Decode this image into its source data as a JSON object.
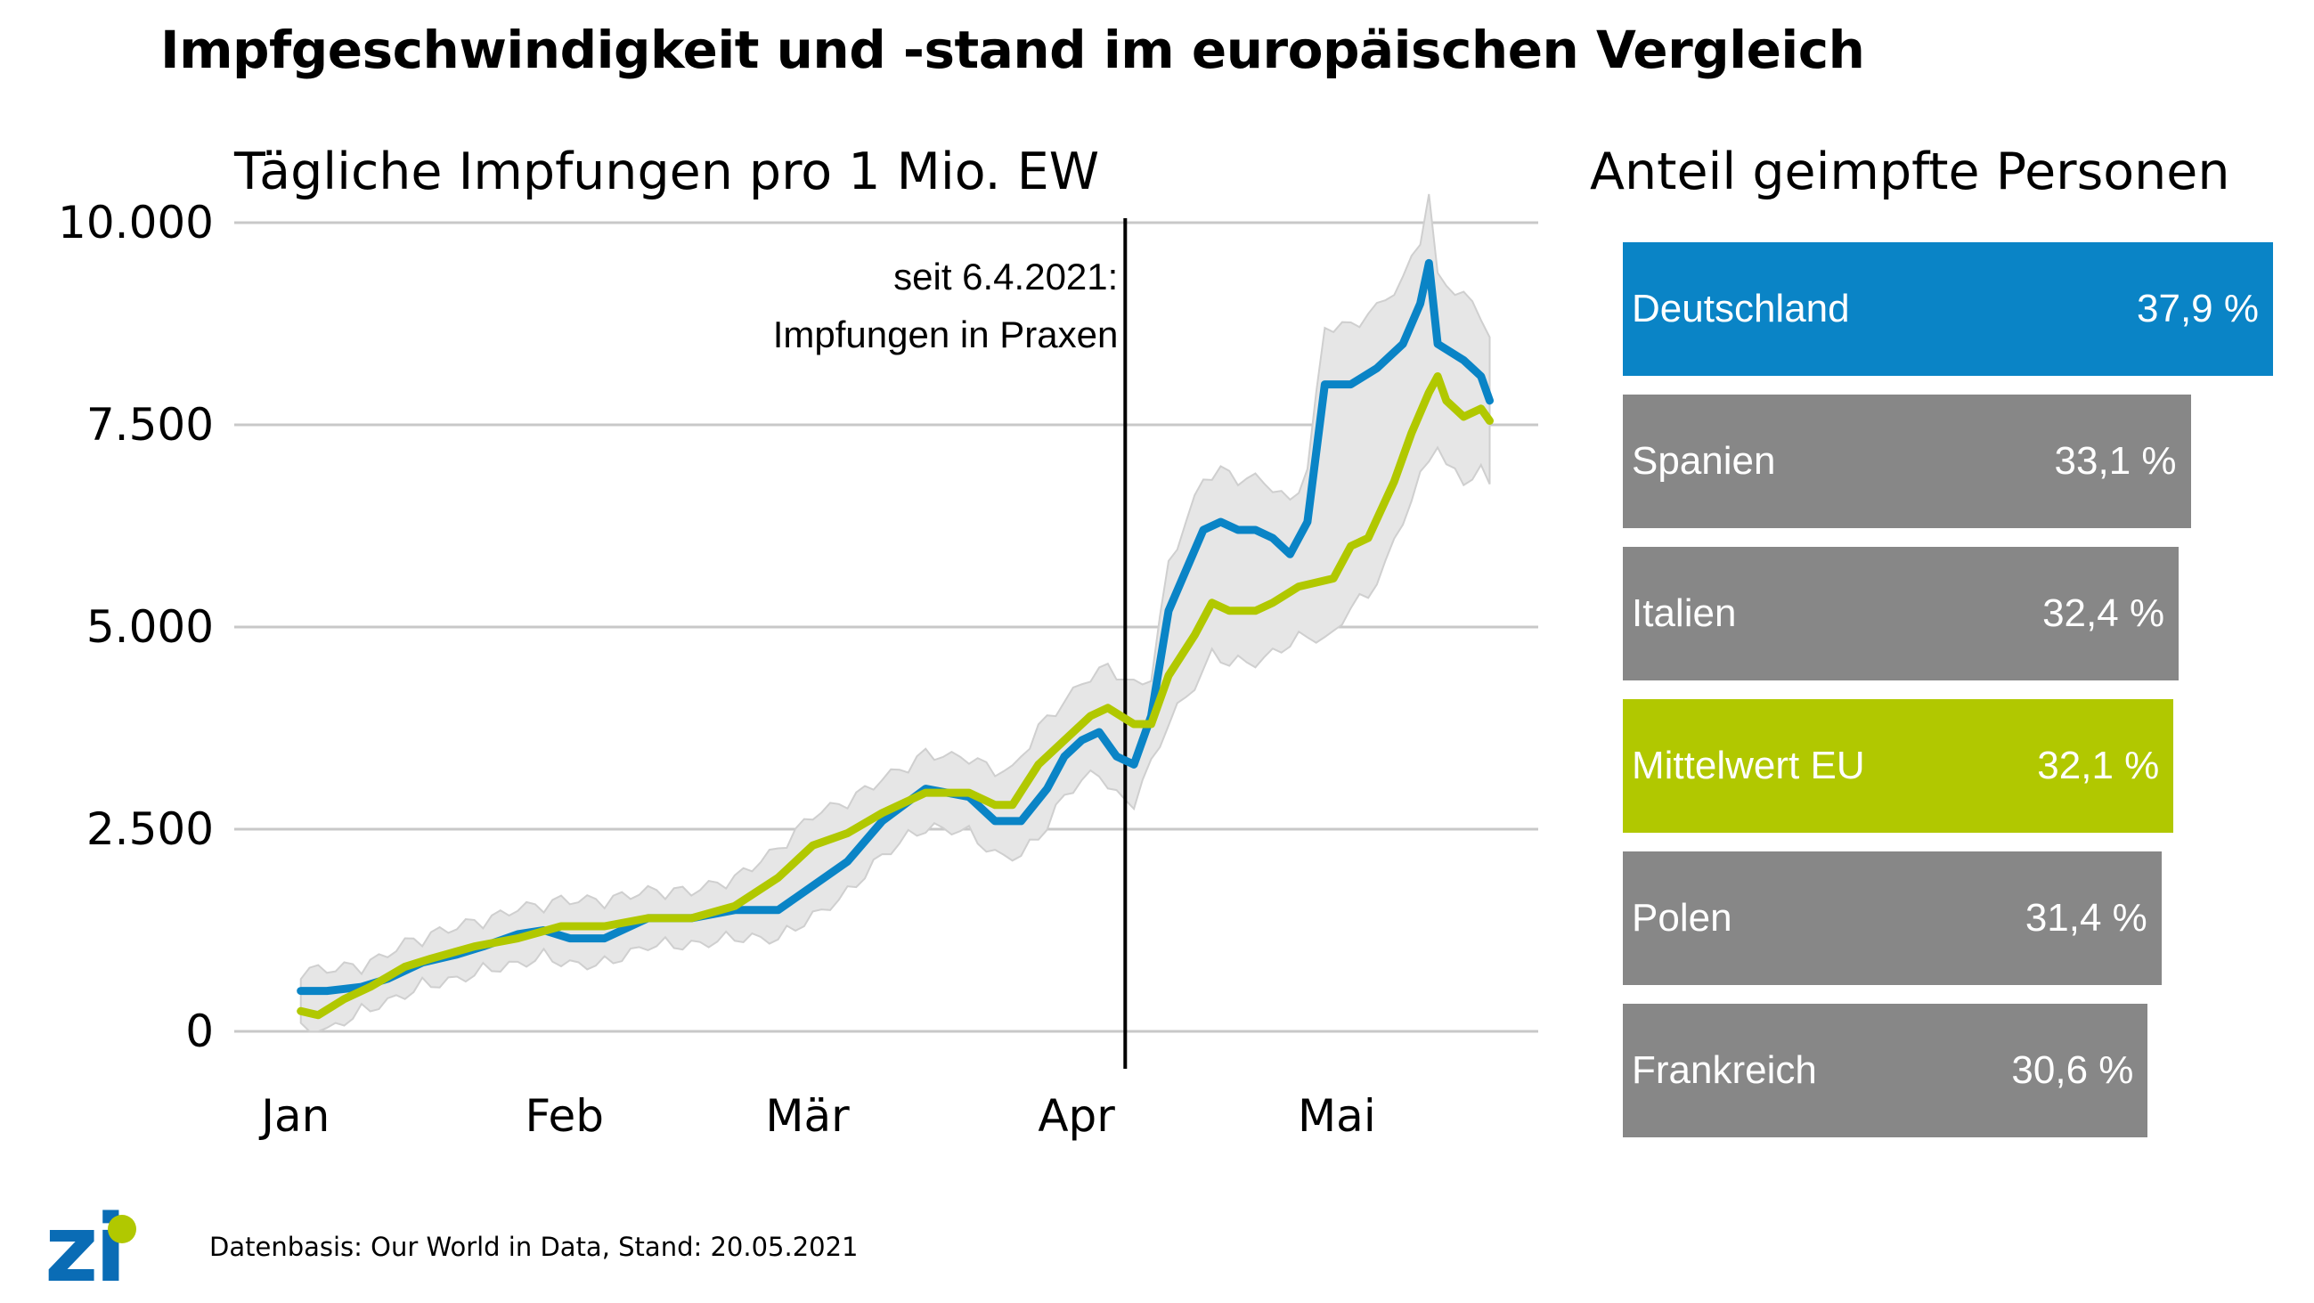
{
  "title": "Impfgeschwindigkeit und -stand im europäischen Vergleich",
  "footer": {
    "logo_text": "zi",
    "source": "Datenbasis: Our World in Data, Stand: 20.05.2021"
  },
  "colors": {
    "deutschland": "#0a84c6",
    "eu_mean": "#b1c800",
    "other": "#878787",
    "band": "#e6e6e6",
    "grid": "#c8c8c8"
  },
  "chart_data": [
    {
      "type": "line",
      "title": "Tägliche Impfungen pro 1 Mio. EW",
      "ylim": [
        0,
        10000
      ],
      "y_ticks": [
        {
          "value": 0,
          "label": "0"
        },
        {
          "value": 2500,
          "label": "2.500"
        },
        {
          "value": 5000,
          "label": "5.000"
        },
        {
          "value": 7500,
          "label": "7.500"
        },
        {
          "value": 10000,
          "label": "10.000"
        }
      ],
      "x_ticks": [
        {
          "day": 0,
          "label": "Jan"
        },
        {
          "day": 31,
          "label": "Feb"
        },
        {
          "day": 59,
          "label": "Mär"
        },
        {
          "day": 90,
          "label": "Apr"
        },
        {
          "day": 120,
          "label": "Mai"
        }
      ],
      "xlim": [
        -1,
        139
      ],
      "grid": true,
      "annotation": {
        "day": 95,
        "lines": [
          "seit 6.4.2021:",
          "Impfungen in Praxen"
        ]
      },
      "series": [
        {
          "name": "Deutschland",
          "points": [
            [
              0,
              500
            ],
            [
              3,
              500
            ],
            [
              7,
              550
            ],
            [
              10,
              650
            ],
            [
              14,
              850
            ],
            [
              18,
              950
            ],
            [
              21,
              1050
            ],
            [
              25,
              1200
            ],
            [
              28,
              1250
            ],
            [
              31,
              1150
            ],
            [
              35,
              1150
            ],
            [
              40,
              1400
            ],
            [
              45,
              1400
            ],
            [
              50,
              1500
            ],
            [
              55,
              1500
            ],
            [
              59,
              1800
            ],
            [
              63,
              2100
            ],
            [
              67,
              2600
            ],
            [
              72,
              3000
            ],
            [
              77,
              2900
            ],
            [
              80,
              2600
            ],
            [
              83,
              2600
            ],
            [
              86,
              3000
            ],
            [
              88,
              3400
            ],
            [
              90,
              3600
            ],
            [
              92,
              3700
            ],
            [
              94,
              3400
            ],
            [
              96,
              3300
            ],
            [
              98,
              3900
            ],
            [
              100,
              5200
            ],
            [
              102,
              5700
            ],
            [
              104,
              6200
            ],
            [
              106,
              6300
            ],
            [
              108,
              6200
            ],
            [
              110,
              6200
            ],
            [
              112,
              6100
            ],
            [
              114,
              5900
            ],
            [
              116,
              6300
            ],
            [
              118,
              8000
            ],
            [
              121,
              8000
            ],
            [
              124,
              8200
            ],
            [
              127,
              8500
            ],
            [
              129,
              9000
            ],
            [
              130,
              9500
            ],
            [
              131,
              8500
            ],
            [
              134,
              8300
            ],
            [
              136,
              8100
            ],
            [
              137,
              7800
            ]
          ]
        },
        {
          "name": "Mittelwert EU",
          "points": [
            [
              0,
              250
            ],
            [
              2,
              200
            ],
            [
              5,
              400
            ],
            [
              8,
              550
            ],
            [
              12,
              800
            ],
            [
              15,
              900
            ],
            [
              20,
              1050
            ],
            [
              25,
              1150
            ],
            [
              30,
              1300
            ],
            [
              35,
              1300
            ],
            [
              40,
              1400
            ],
            [
              45,
              1400
            ],
            [
              50,
              1550
            ],
            [
              55,
              1900
            ],
            [
              59,
              2300
            ],
            [
              63,
              2450
            ],
            [
              67,
              2700
            ],
            [
              72,
              2950
            ],
            [
              77,
              2950
            ],
            [
              80,
              2800
            ],
            [
              82,
              2800
            ],
            [
              85,
              3300
            ],
            [
              88,
              3600
            ],
            [
              91,
              3900
            ],
            [
              93,
              4000
            ],
            [
              96,
              3800
            ],
            [
              98,
              3800
            ],
            [
              100,
              4400
            ],
            [
              103,
              4900
            ],
            [
              105,
              5300
            ],
            [
              107,
              5200
            ],
            [
              110,
              5200
            ],
            [
              112,
              5300
            ],
            [
              115,
              5500
            ],
            [
              119,
              5600
            ],
            [
              121,
              6000
            ],
            [
              123,
              6100
            ],
            [
              126,
              6800
            ],
            [
              128,
              7400
            ],
            [
              130,
              7900
            ],
            [
              131,
              8100
            ],
            [
              132,
              7800
            ],
            [
              134,
              7600
            ],
            [
              136,
              7700
            ],
            [
              137,
              7550
            ]
          ]
        }
      ]
    },
    {
      "type": "bar",
      "title": "Anteil geimpfte Personen",
      "unit": "%",
      "categories": [
        "Deutschland",
        "Spanien",
        "Italien",
        "Mittelwert EU",
        "Polen",
        "Frankreich"
      ],
      "values": [
        37.9,
        33.1,
        32.4,
        32.1,
        31.4,
        30.6
      ],
      "value_labels": [
        "37,9 %",
        "33,1 %",
        "32,4 %",
        "32,1 %",
        "31,4 %",
        "30,6 %"
      ]
    }
  ]
}
